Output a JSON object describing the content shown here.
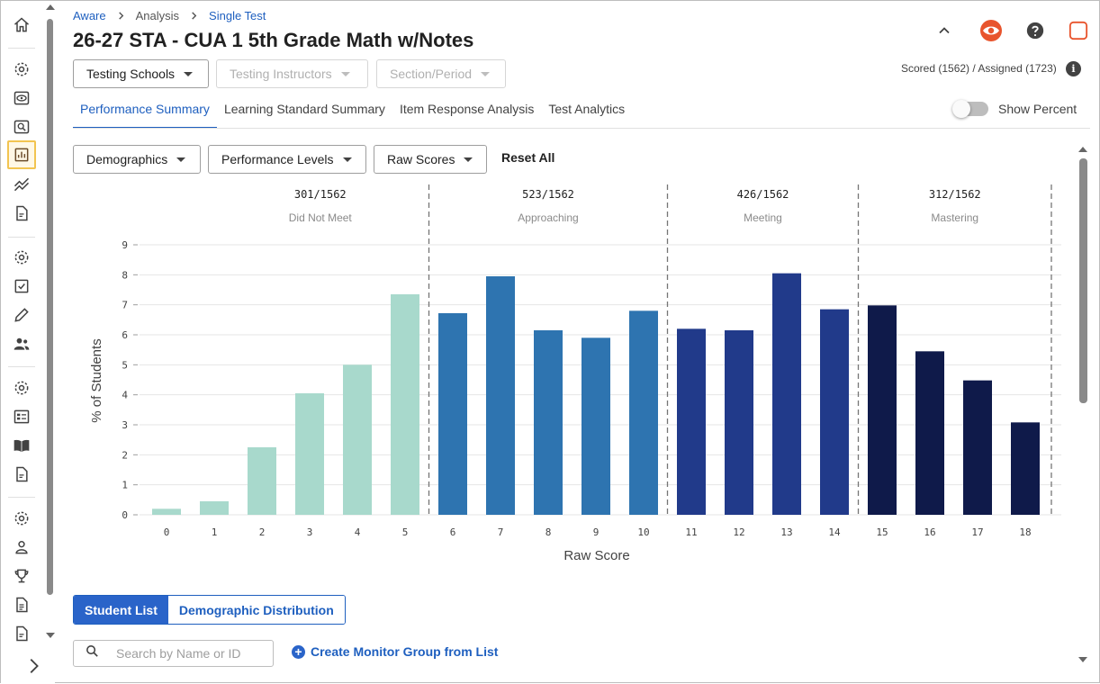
{
  "breadcrumb": [
    {
      "label": "Aware",
      "link": true
    },
    {
      "label": "Analysis",
      "link": false
    },
    {
      "label": "Single Test",
      "link": true
    }
  ],
  "page_title": "26-27 STA - CUA 1 5th Grade Math w/Notes",
  "header_icons": [
    "chevron-up-icon",
    "eye-icon",
    "help-icon",
    "square-icon"
  ],
  "filters_top": [
    {
      "label": "Testing Schools",
      "disabled": false
    },
    {
      "label": "Testing Instructors",
      "disabled": true
    },
    {
      "label": "Section/Period",
      "disabled": true
    }
  ],
  "scored_text": "Scored (1562) / Assigned (1723)",
  "info_glyph": "i",
  "tabs": [
    {
      "label": "Performance Summary",
      "active": true
    },
    {
      "label": "Learning Standard Summary",
      "active": false
    },
    {
      "label": "Item Response Analysis",
      "active": false
    },
    {
      "label": "Test Analytics",
      "active": false
    }
  ],
  "show_percent_label": "Show Percent",
  "show_percent_on": false,
  "filters_chart": [
    {
      "label": "Demographics"
    },
    {
      "label": "Performance Levels"
    },
    {
      "label": "Raw Scores"
    }
  ],
  "reset_all_label": "Reset All",
  "chart_data": {
    "type": "bar",
    "xlabel": "Raw Score",
    "ylabel": "% of Students",
    "ylim": [
      0,
      9
    ],
    "yticks": [
      0,
      1,
      2,
      3,
      4,
      5,
      6,
      7,
      8,
      9
    ],
    "categories": [
      "0",
      "1",
      "2",
      "3",
      "4",
      "5",
      "6",
      "7",
      "8",
      "9",
      "10",
      "11",
      "12",
      "13",
      "14",
      "15",
      "16",
      "17",
      "18"
    ],
    "values": [
      0.2,
      0.45,
      2.25,
      4.05,
      5.0,
      7.35,
      6.72,
      7.95,
      6.15,
      5.9,
      6.8,
      6.2,
      6.15,
      8.05,
      6.85,
      6.98,
      5.45,
      4.48,
      3.08
    ],
    "levels": [
      {
        "name": "Did Not Meet",
        "count": "301/1562",
        "from": 0,
        "to": 5,
        "color": "#a8d9cc"
      },
      {
        "name": "Approaching",
        "count": "523/1562",
        "from": 6,
        "to": 10,
        "color": "#2e74b0"
      },
      {
        "name": "Meeting",
        "count": "426/1562",
        "from": 11,
        "to": 14,
        "color": "#213a8a"
      },
      {
        "name": "Mastering",
        "count": "312/1562",
        "from": 15,
        "to": 18,
        "color": "#0f1a4a"
      }
    ],
    "grid": true
  },
  "bottom_tabs": [
    {
      "label": "Student List",
      "active": true
    },
    {
      "label": "Demographic Distribution",
      "active": false
    }
  ],
  "search": {
    "placeholder": "Search by Name or ID",
    "value": ""
  },
  "create_group_label": "Create Monitor Group from List",
  "create_group_glyph": "+",
  "sidebar_icons": [
    "home-icon",
    "gear-icon",
    "eye-icon",
    "search-icon",
    "report-icon",
    "trend-icon",
    "document-icon",
    "gear-icon",
    "checklist-icon",
    "pencil-icon",
    "users-icon",
    "gear-icon",
    "roster-icon",
    "book-icon",
    "document-icon",
    "gear-icon",
    "person-icon",
    "trophy-icon",
    "file-icon",
    "document-icon"
  ],
  "colors": {
    "accent": "#1e5fbf",
    "eye_icon": "#e8542d",
    "active_outline": "#f2c451"
  }
}
